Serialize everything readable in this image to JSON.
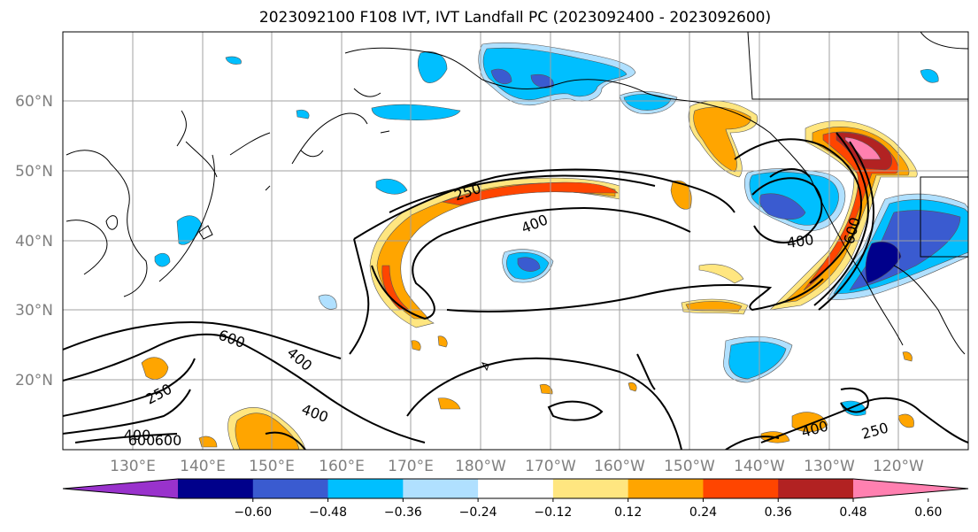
{
  "title": "2023092100 F108 IVT, IVT Landfall PC (2023092400 - 2023092600)",
  "lat_labels": [
    "60°N",
    "50°N",
    "40°N",
    "30°N",
    "20°N"
  ],
  "lon_labels": [
    "130°E",
    "140°E",
    "150°E",
    "160°E",
    "170°E",
    "180°W",
    "170°W",
    "160°W",
    "150°W",
    "140°W",
    "130°W",
    "120°W"
  ],
  "contour_labels": [
    "250",
    "400",
    "600",
    "600",
    "400",
    "250",
    "400",
    "400",
    "600",
    "400",
    "400",
    "250",
    "600"
  ],
  "colorbar": {
    "colors": [
      "#9932cc",
      "#00008b",
      "#3a5bd0",
      "#00bfff",
      "#b0e0ff",
      "#ffffff",
      "#ffe680",
      "#ffa500",
      "#ff4500",
      "#b22222",
      "#ff80b0"
    ],
    "tick_labels": [
      "−0.60",
      "−0.48",
      "−0.36",
      "−0.24",
      "−0.12",
      "0.12",
      "0.24",
      "0.36",
      "0.48",
      "0.60"
    ]
  },
  "colors": {
    "positive_low": "#ffe680",
    "positive_mid": "#ffa500",
    "positive_high": "#ff4500",
    "positive_higher": "#b22222",
    "positive_max": "#ff80b0",
    "negative_low": "#b0e0ff",
    "negative_mid": "#00bfff",
    "negative_high": "#3a5bd0",
    "negative_higher": "#00008b"
  }
}
